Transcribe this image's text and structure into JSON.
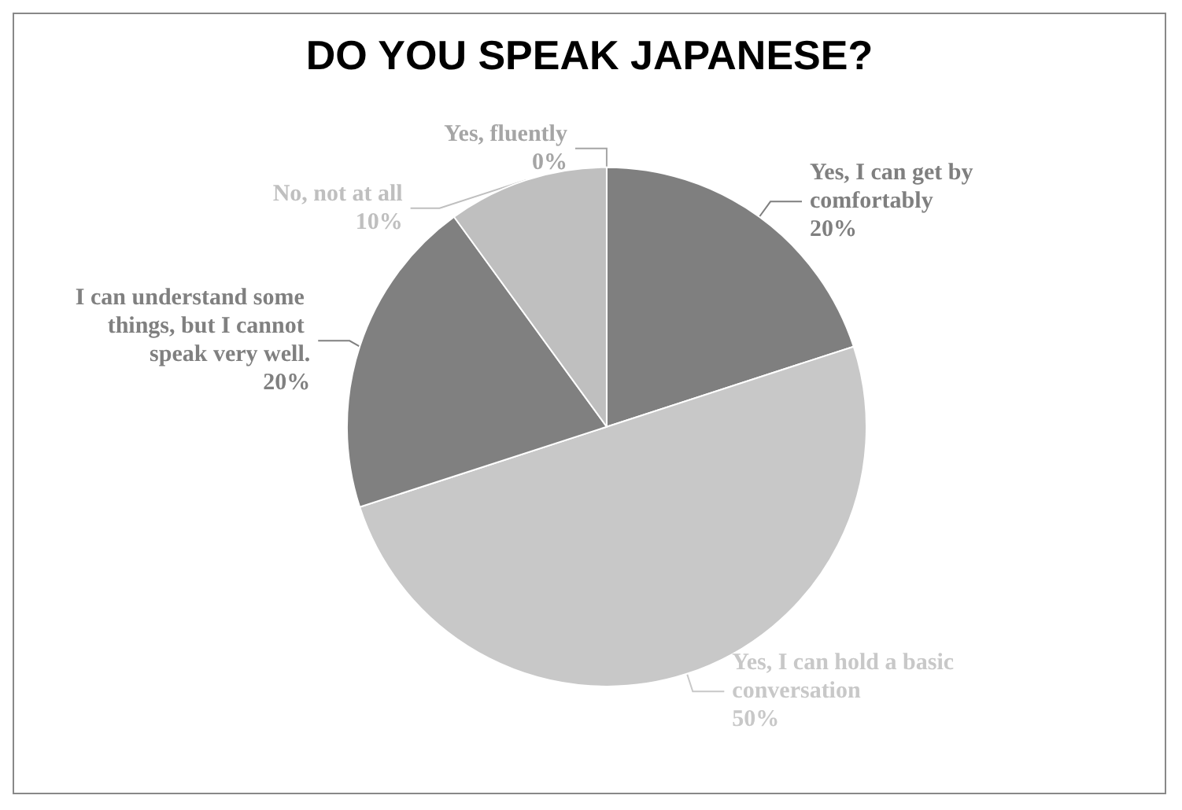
{
  "chart_data": {
    "type": "pie",
    "title": "DO YOU SPEAK JAPANESE?",
    "categories": [
      "Yes, fluently",
      "Yes, I can get by comfortably",
      "Yes, I can hold a basic conversation",
      "I can understand some things, but I cannot speak very well.",
      "No, not at all"
    ],
    "values": [
      0,
      20,
      50,
      20,
      10
    ],
    "colors": [
      "#a5a5a5",
      "#7f7f7f",
      "#c8c8c8",
      "#808080",
      "#bfbfbf"
    ],
    "value_labels": [
      "0%",
      "20%",
      "50%",
      "20%",
      "10%"
    ],
    "legend": false
  }
}
